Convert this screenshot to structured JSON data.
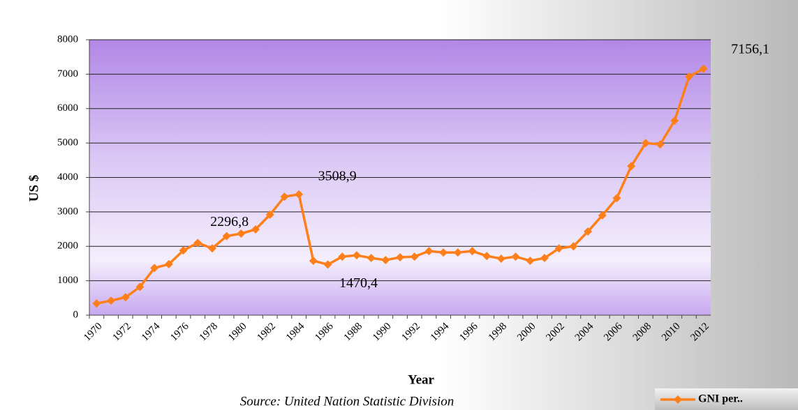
{
  "chart_data": {
    "type": "line",
    "y_label": "US $",
    "x_label": "Year",
    "source": "Source: United Nation Statistic Division",
    "categories": [
      "1970",
      null,
      "1972",
      null,
      "1974",
      null,
      "1976",
      null,
      "1978",
      null,
      "1980",
      null,
      "1982",
      null,
      "1984",
      null,
      "1986",
      null,
      "1988",
      null,
      "1990",
      null,
      "1992",
      null,
      "1994",
      null,
      "1996",
      null,
      "1998",
      null,
      "2000",
      null,
      "2002",
      null,
      "2004",
      null,
      "2006",
      null,
      "2008",
      null,
      "2010",
      null,
      "2012"
    ],
    "series": [
      {
        "name": "GNI per..",
        "color": "#ff7f1a",
        "values": [
          340,
          420,
          520,
          820,
          1370,
          1480,
          1880,
          2100,
          1940,
          2296.8,
          2370,
          2490,
          2920,
          3440,
          3508.9,
          1580,
          1470.4,
          1700,
          1740,
          1660,
          1600,
          1680,
          1700,
          1860,
          1820,
          1820,
          1860,
          1720,
          1640,
          1700,
          1580,
          1660,
          1940,
          2000,
          2430,
          2900,
          3400,
          4330,
          5000,
          4960,
          5650,
          6930,
          7156.1
        ],
        "value_labels": [
          null,
          null,
          null,
          null,
          null,
          null,
          null,
          null,
          null,
          "2296,8",
          null,
          null,
          null,
          null,
          "3508,9",
          null,
          "1470,4",
          null,
          null,
          null,
          null,
          null,
          null,
          null,
          null,
          null,
          null,
          null,
          null,
          null,
          null,
          null,
          null,
          null,
          null,
          null,
          null,
          null,
          null,
          null,
          null,
          null,
          "7156,1"
        ]
      }
    ],
    "ylim": [
      0,
      8000
    ],
    "yticks": [
      0,
      1000,
      2000,
      3000,
      4000,
      5000,
      6000,
      7000,
      8000
    ],
    "grid": true,
    "legend": "bottom-right"
  }
}
